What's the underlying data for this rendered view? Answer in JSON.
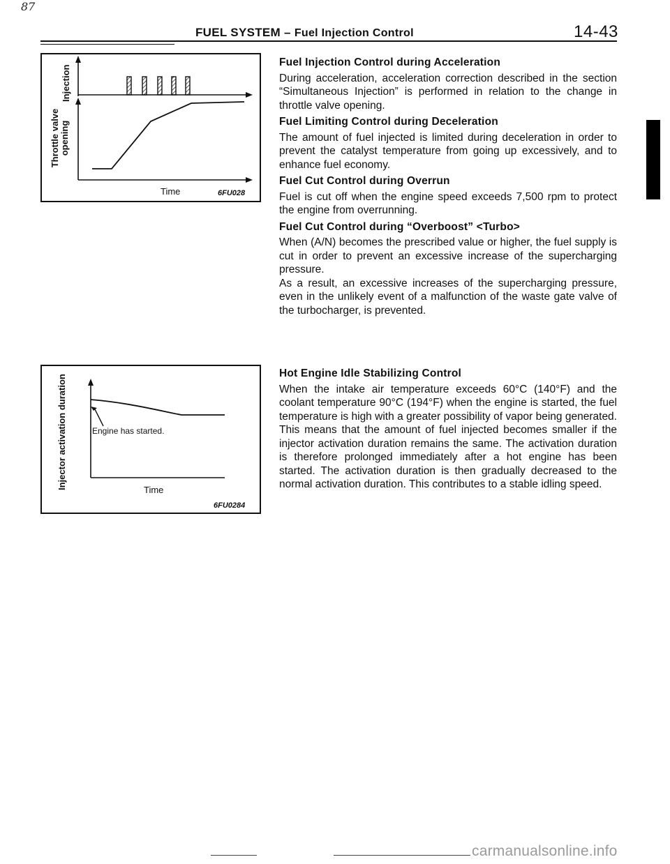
{
  "page": {
    "corner_mark": "87",
    "header_title": "FUEL SYSTEM –",
    "header_subtitle": "Fuel Injection Control",
    "page_number": "14-43",
    "watermark": "carmanualsonline.info"
  },
  "figures": {
    "accel": {
      "y_label_top": "Injection",
      "y_label_bottom": "Throttle valve opening",
      "x_label": "Time",
      "code": "6FU028"
    },
    "hot_idle": {
      "y_label": "Injector activation duration",
      "note": "Engine has started.",
      "x_label": "Time",
      "code": "6FU0284"
    }
  },
  "sections": [
    {
      "title": "Fuel Injection Control during Acceleration",
      "body": "During acceleration, acceleration correction described in the section “Simultaneous Injection” is performed in relation to the change in throttle valve opening."
    },
    {
      "title": "Fuel Limiting Control during Deceleration",
      "body": "The amount of fuel injected is limited during deceleration in order to prevent the catalyst temperature from going up excessively, and to enhance fuel economy."
    },
    {
      "title": "Fuel Cut Control during Overrun",
      "body": "Fuel is cut off when the engine speed exceeds 7,500 rpm to protect the engine from overrunning."
    },
    {
      "title": "Fuel Cut Control during “Overboost” <Turbo>",
      "body": "When (A/N) becomes the prescribed value or higher, the fuel supply is cut in order to prevent an excessive increase of the supercharging pressure.",
      "body2": "As a result, an excessive increases of the supercharging pressure, even in the unlikely event of a malfunction of the waste gate valve of the turbocharger, is prevented."
    },
    {
      "title": "Hot Engine Idle Stabilizing Control",
      "body": "When the intake air temperature exceeds 60°C (140°F) and the coolant temperature 90°C (194°F) when the engine is started, the fuel temperature is high with a greater possibility of vapor being generated. This means that the amount of fuel injected becomes smaller if the injector activation duration remains the same. The activation duration is therefore prolonged immediately after a hot engine has been started. The activation duration is then gradually decreased to the normal activation duration. This contributes to a stable idling speed."
    }
  ]
}
